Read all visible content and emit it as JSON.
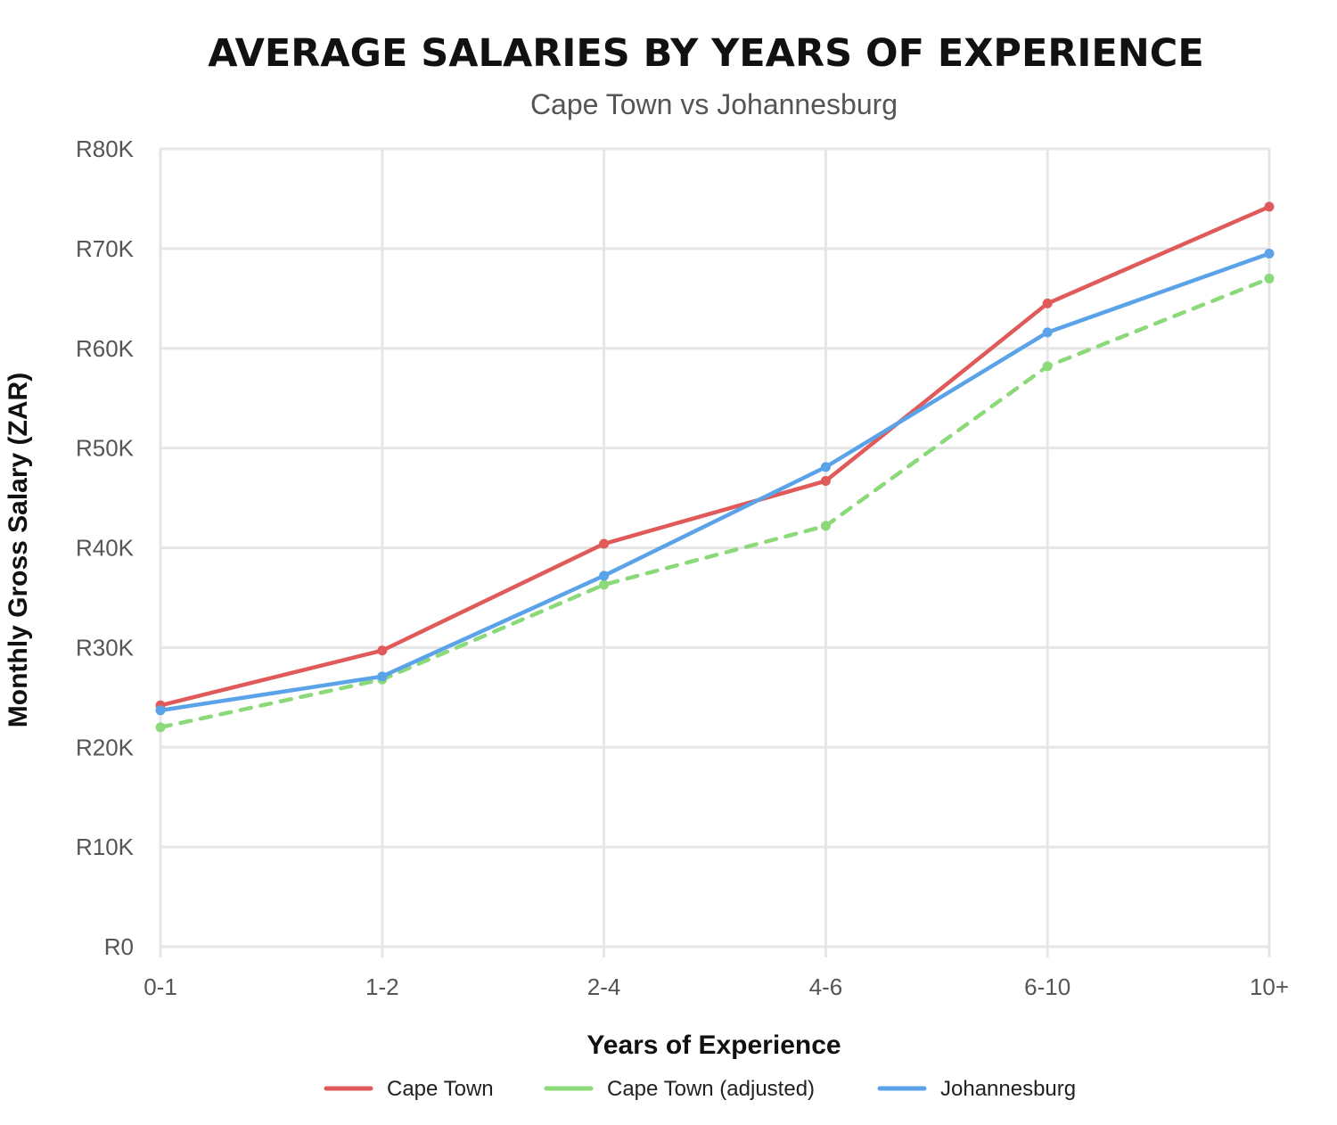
{
  "chart_data": {
    "type": "line",
    "title": "AVERAGE SALARIES BY YEARS OF EXPERIENCE",
    "subtitle": "Cape Town vs Johannesburg",
    "xlabel": "Years of Experience",
    "ylabel": "Monthly Gross Salary (ZAR)",
    "categories": [
      "0-1",
      "1-2",
      "2-4",
      "4-6",
      "6-10",
      "10+"
    ],
    "ylim": [
      0,
      80000
    ],
    "yticks": [
      0,
      10000,
      20000,
      30000,
      40000,
      50000,
      60000,
      70000,
      80000
    ],
    "ytick_labels": [
      "R0",
      "R10K",
      "R20K",
      "R30K",
      "R40K",
      "R50K",
      "R60K",
      "R70K",
      "R80K"
    ],
    "grid": true,
    "legend_position": "bottom",
    "series": [
      {
        "name": "Cape Town",
        "color": "#e05a5a",
        "style": "solid",
        "values": [
          24200,
          29700,
          40400,
          46700,
          64500,
          74200
        ]
      },
      {
        "name": "Cape Town (adjusted)",
        "color": "#8cd97a",
        "style": "dashed",
        "values": [
          22000,
          26800,
          36300,
          42200,
          58200,
          67000
        ]
      },
      {
        "name": "Johannesburg",
        "color": "#5ba3e8",
        "style": "solid",
        "values": [
          23700,
          27100,
          37200,
          48100,
          61600,
          69500
        ]
      }
    ]
  }
}
